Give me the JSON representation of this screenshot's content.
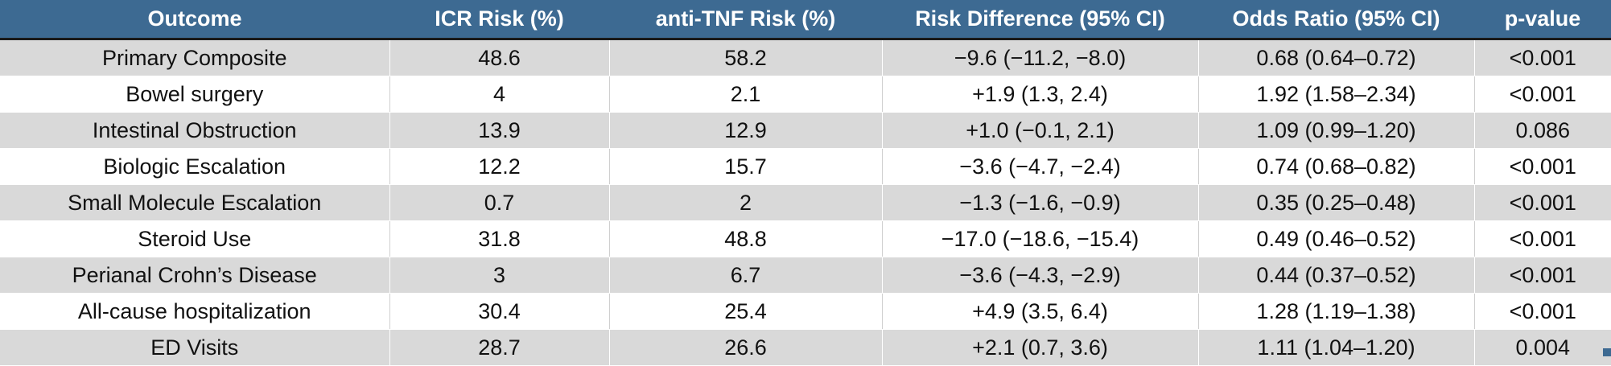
{
  "table": {
    "headers": [
      "Outcome",
      "ICR Risk (%)",
      "anti-TNF Risk (%)",
      "Risk Difference (95% CI)",
      "Odds Ratio (95% CI)",
      "p-value"
    ],
    "rows": [
      [
        "Primary Composite",
        "48.6",
        "58.2",
        "−9.6 (−11.2, −8.0)",
        "0.68 (0.64–0.72)",
        "<0.001"
      ],
      [
        "Bowel surgery",
        "4",
        "2.1",
        "+1.9 (1.3, 2.4)",
        "1.92 (1.58–2.34)",
        "<0.001"
      ],
      [
        "Intestinal Obstruction",
        "13.9",
        "12.9",
        "+1.0 (−0.1, 2.1)",
        "1.09 (0.99–1.20)",
        "0.086"
      ],
      [
        "Biologic Escalation",
        "12.2",
        "15.7",
        "−3.6 (−4.7, −2.4)",
        "0.74 (0.68–0.82)",
        "<0.001"
      ],
      [
        "Small Molecule Escalation",
        "0.7",
        "2",
        "−1.3 (−1.6, −0.9)",
        "0.35 (0.25–0.48)",
        "<0.001"
      ],
      [
        "Steroid Use",
        "31.8",
        "48.8",
        "−17.0 (−18.6, −15.4)",
        "0.49 (0.46–0.52)",
        "<0.001"
      ],
      [
        "Perianal Crohn’s Disease",
        "3",
        "6.7",
        "−3.6 (−4.3, −2.9)",
        "0.44 (0.37–0.52)",
        "<0.001"
      ],
      [
        "All-cause hospitalization",
        "30.4",
        "25.4",
        "+4.9 (3.5, 6.4)",
        "1.28 (1.19–1.38)",
        "<0.001"
      ],
      [
        "ED Visits",
        "28.7",
        "26.6",
        "+2.1 (0.7, 3.6)",
        "1.11 (1.04–1.20)",
        "0.004"
      ]
    ]
  },
  "colors": {
    "header_bg": "#3d6a92",
    "header_text": "#ffffff",
    "row_shaded": "#d9d9d9",
    "row_plain": "#ffffff"
  }
}
